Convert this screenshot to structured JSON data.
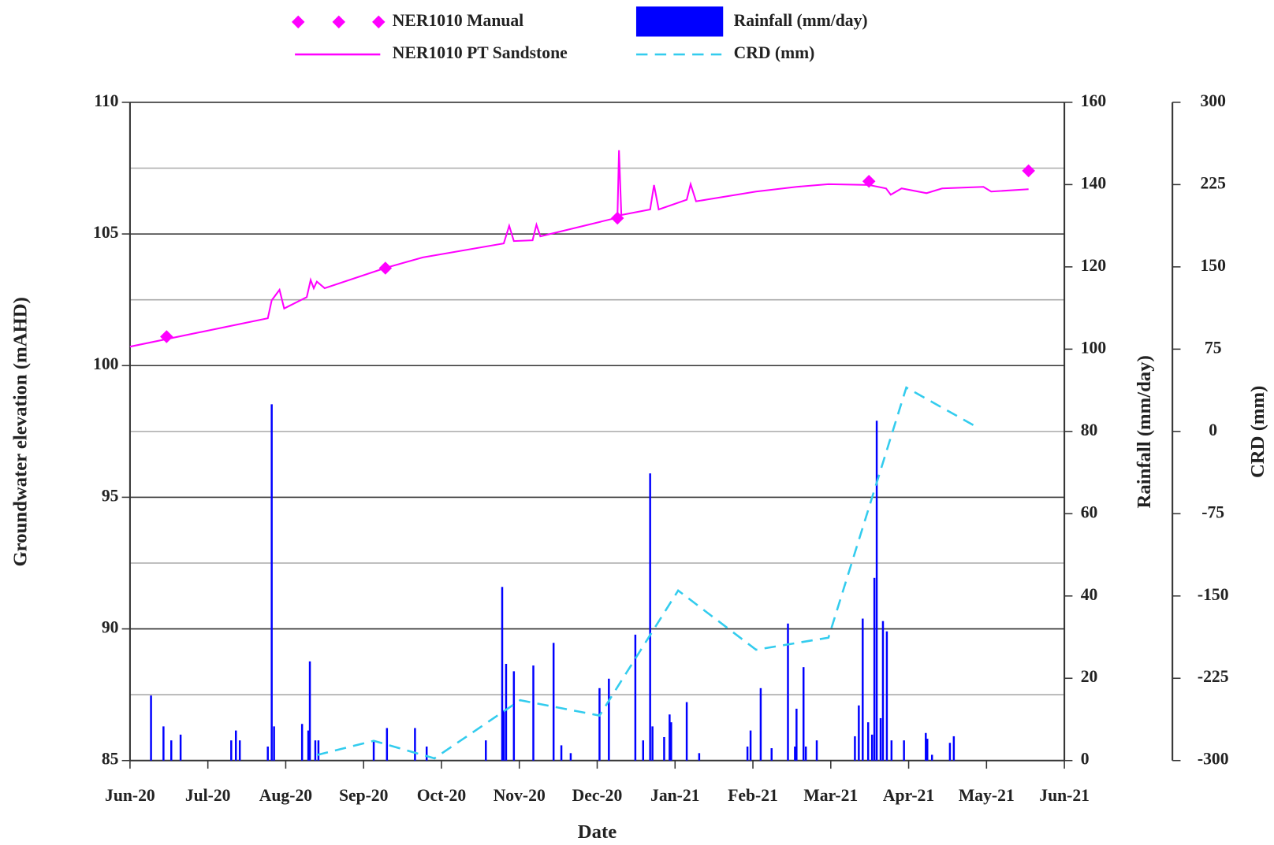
{
  "chart_data": {
    "type": "line",
    "x_label": "Date",
    "y_label": "Groundwater elevation (mAHD)",
    "y2_label": "Rainfall (mm/day)",
    "y3_label": "CRD (mm)",
    "xlim": [
      0,
      12
    ],
    "xticks": [
      {
        "value": 0,
        "label": "Jun-20"
      },
      {
        "value": 1,
        "label": "Jul-20"
      },
      {
        "value": 2,
        "label": "Aug-20"
      },
      {
        "value": 3,
        "label": "Sep-20"
      },
      {
        "value": 4,
        "label": "Oct-20"
      },
      {
        "value": 5,
        "label": "Nov-20"
      },
      {
        "value": 6,
        "label": "Dec-20"
      },
      {
        "value": 7,
        "label": "Jan-21"
      },
      {
        "value": 8,
        "label": "Feb-21"
      },
      {
        "value": 9,
        "label": "Mar-21"
      },
      {
        "value": 10,
        "label": "Apr-21"
      },
      {
        "value": 11,
        "label": "May-21"
      },
      {
        "value": 12,
        "label": "Jun-21"
      }
    ],
    "ylim": [
      85,
      110
    ],
    "yticks": [
      85,
      90,
      95,
      100,
      105,
      110
    ],
    "y_minor_grid": [
      87.5,
      92.5,
      97.5,
      102.5,
      107.5
    ],
    "y2lim": [
      0,
      160
    ],
    "y2ticks": [
      0,
      20,
      40,
      60,
      80,
      100,
      120,
      140,
      160
    ],
    "y3lim": [
      -300,
      300
    ],
    "y3ticks": [
      -300,
      -225,
      -150,
      -75,
      0,
      75,
      150,
      225,
      300
    ],
    "grid": true,
    "series": [
      {
        "name": "NER1010 Manual",
        "type": "scatter",
        "marker": "diamond",
        "color": "#ff00ff",
        "axis": "y",
        "x": [
          0.47,
          3.28,
          6.26,
          9.49,
          11.54
        ],
        "values": [
          101.1,
          103.7,
          105.6,
          107.0,
          107.4
        ]
      },
      {
        "name": "NER1010 PT Sandstone",
        "type": "line",
        "color": "#ff00ff",
        "axis": "y",
        "x": [
          0,
          1.77,
          1.82,
          1.92,
          1.98,
          2.27,
          2.32,
          2.36,
          2.4,
          2.5,
          3.28,
          3.76,
          4.8,
          4.87,
          4.93,
          5.17,
          5.22,
          5.27,
          6.26,
          6.28,
          6.31,
          6.68,
          6.73,
          6.79,
          7.15,
          7.2,
          7.27,
          8.04,
          8.56,
          8.97,
          9.49,
          9.71,
          9.77,
          9.91,
          10.23,
          10.43,
          10.96,
          11.06,
          11.54
        ],
        "values": [
          100.72,
          101.8,
          102.48,
          102.88,
          102.17,
          102.6,
          103.25,
          102.94,
          103.19,
          102.94,
          103.71,
          104.11,
          104.64,
          105.31,
          104.73,
          104.76,
          105.35,
          104.91,
          105.62,
          108.18,
          105.72,
          105.93,
          106.86,
          105.93,
          106.3,
          106.89,
          106.24,
          106.61,
          106.79,
          106.89,
          106.86,
          106.73,
          106.49,
          106.73,
          106.55,
          106.73,
          106.79,
          106.61,
          106.7
        ]
      },
      {
        "name": "Rainfall (mm/day)",
        "type": "bar",
        "color": "#0000ff",
        "axis": "y2",
        "x": [
          0.27,
          0.43,
          0.53,
          0.65,
          1.3,
          1.36,
          1.41,
          1.77,
          1.82,
          1.85,
          2.21,
          2.29,
          2.31,
          2.38,
          2.42,
          3.13,
          3.3,
          3.66,
          3.81,
          4.57,
          4.78,
          4.8,
          4.83,
          4.93,
          5.18,
          5.44,
          5.54,
          5.66,
          6.03,
          6.15,
          6.49,
          6.59,
          6.68,
          6.71,
          6.86,
          6.93,
          6.95,
          7.15,
          7.31,
          7.93,
          7.97,
          8.1,
          8.24,
          8.45,
          8.54,
          8.56,
          8.65,
          8.68,
          8.82,
          9.31,
          9.36,
          9.41,
          9.48,
          9.53,
          9.56,
          9.59,
          9.64,
          9.67,
          9.72,
          9.78,
          9.94,
          10.22,
          10.24,
          10.3,
          10.53,
          10.58
        ],
        "values": [
          15.8,
          8.3,
          4.9,
          6.3,
          4.9,
          7.3,
          4.9,
          3.4,
          86.6,
          8.3,
          8.9,
          7.3,
          24.1,
          4.9,
          4.9,
          4.9,
          7.9,
          7.9,
          3.4,
          4.9,
          42.2,
          12.2,
          23.5,
          21.7,
          23.1,
          28.6,
          3.7,
          1.8,
          17.6,
          19.9,
          30.6,
          4.9,
          69.8,
          8.3,
          5.7,
          11.2,
          9.3,
          14.2,
          1.8,
          3.4,
          7.3,
          17.6,
          3.0,
          33.3,
          3.4,
          12.6,
          22.7,
          3.4,
          4.9,
          5.9,
          13.4,
          34.5,
          9.3,
          6.3,
          44.4,
          82.6,
          10.3,
          33.9,
          31.4,
          4.9,
          4.9,
          6.7,
          5.3,
          1.4,
          4.3,
          5.9
        ]
      },
      {
        "name": "CRD (mm)",
        "type": "line",
        "dash": true,
        "color": "#33ccee",
        "axis": "y3",
        "x": [
          2.4,
          3.13,
          3.91,
          5.01,
          6.03,
          7.04,
          8.04,
          8.97,
          9.97,
          10.85
        ],
        "values": [
          -295,
          -282,
          -298,
          -245,
          -259,
          -145,
          -199,
          -188,
          40,
          5
        ]
      }
    ]
  }
}
